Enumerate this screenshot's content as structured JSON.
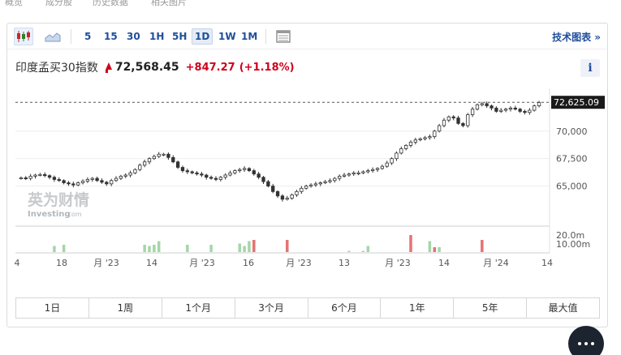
{
  "top_strip": [
    "概览",
    "成分股",
    "历史数据",
    "相关图片"
  ],
  "toolbar": {
    "intervals": [
      "5",
      "15",
      "30",
      "1H",
      "5H",
      "1D",
      "1W",
      "1M"
    ],
    "active_interval": "1D",
    "tech_chart_label": "技术图表 »",
    "icons": [
      "candlestick-icon",
      "area-chart-icon",
      "table-icon"
    ]
  },
  "quote": {
    "name": "印度孟买30指数",
    "price": "72,568.45",
    "change": "+847.27",
    "change_pct": "(+1.18%)",
    "up_color": "#d0021b"
  },
  "info_label": "i",
  "watermark": {
    "cn": "英为财情",
    "en": "Investing",
    "suffix": ".com"
  },
  "chart_data": {
    "type": "candlestick",
    "current_price_label": "72,625.09",
    "current_price": 72625,
    "y_ticks": [
      70000,
      67500,
      65000
    ],
    "y_tick_labels": [
      "70,000",
      "67,500",
      "65,000"
    ],
    "ylim": [
      61500,
      73600
    ],
    "volume_labels": [
      "20.0m",
      "10.00m"
    ],
    "x_tick_labels": [
      "4",
      "18",
      "月 '23",
      "14",
      "月 '23",
      "16",
      "月 '23",
      "13",
      "月 '23",
      "14",
      "月 '24",
      "14"
    ],
    "x_tick_positions": [
      20,
      75,
      130,
      186,
      248,
      305,
      367,
      423,
      489,
      546,
      610,
      673
    ],
    "closes": [
      65750,
      65700,
      65900,
      66000,
      66050,
      65950,
      65800,
      65600,
      65500,
      65300,
      65200,
      65100,
      65300,
      65450,
      65600,
      65700,
      65500,
      65350,
      65200,
      65500,
      65700,
      65900,
      66000,
      66200,
      66500,
      66900,
      67200,
      67500,
      67700,
      67900,
      67900,
      67600,
      67200,
      66700,
      66400,
      66300,
      66200,
      66100,
      66000,
      65800,
      65700,
      65600,
      65800,
      66000,
      66200,
      66400,
      66500,
      66600,
      66400,
      66100,
      65800,
      65400,
      65000,
      64500,
      64100,
      63800,
      63900,
      64200,
      64500,
      64800,
      65000,
      65100,
      65200,
      65300,
      65400,
      65500,
      65700,
      65900,
      66000,
      66100,
      66200,
      66200,
      66300,
      66400,
      66500,
      66600,
      66800,
      67100,
      67500,
      68000,
      68400,
      68700,
      69000,
      69200,
      69300,
      69400,
      69500,
      70000,
      70500,
      71000,
      71300,
      71200,
      70700,
      70500,
      71500,
      72000,
      72400,
      72500,
      72300,
      72100,
      71800,
      71900,
      72000,
      72100,
      72000,
      71800,
      71700,
      71900,
      72300,
      72600
    ],
    "volumes": [
      0,
      0,
      0,
      0,
      0,
      0,
      0,
      1,
      0,
      1,
      0,
      0,
      0,
      0,
      0,
      0,
      0,
      0,
      0,
      0,
      0,
      0,
      0,
      0,
      0,
      0,
      1,
      1,
      1,
      1,
      0,
      0,
      0,
      0,
      0,
      1,
      0,
      0,
      0,
      0,
      1,
      0,
      0,
      0,
      0,
      0,
      1,
      1,
      1,
      2,
      0,
      0,
      0,
      0,
      0,
      0,
      2,
      0,
      0,
      0,
      0,
      0,
      0,
      0,
      0,
      0,
      0,
      0,
      0,
      1,
      0,
      0,
      1,
      1,
      0,
      0,
      0,
      0,
      0,
      0,
      0,
      0,
      3,
      0,
      0,
      0,
      1,
      2,
      1,
      0,
      0,
      0,
      0,
      0,
      0,
      0,
      0,
      2,
      0,
      0,
      0,
      0,
      0,
      0,
      0,
      0,
      0,
      0,
      0,
      0
    ],
    "volume_values_m": [
      0,
      0,
      0,
      0,
      0,
      0,
      0,
      5,
      0,
      6,
      0,
      0,
      0,
      0,
      0,
      0,
      0,
      0,
      0,
      0,
      0,
      0,
      0,
      0,
      0,
      0,
      6,
      5,
      6,
      9,
      0,
      0,
      0,
      0,
      0,
      6,
      0,
      0,
      0,
      0,
      6,
      0,
      0,
      0,
      0,
      0,
      7,
      5,
      9,
      10,
      0,
      0,
      0,
      0,
      0,
      0,
      10,
      0,
      0,
      0,
      0,
      0,
      0,
      0,
      0,
      0,
      0,
      0,
      0,
      1,
      0,
      0,
      1,
      5,
      0,
      0,
      0,
      0,
      0,
      0,
      0,
      0,
      14,
      0,
      0,
      0,
      9,
      4,
      4,
      0,
      0,
      0,
      0,
      0,
      0,
      0,
      0,
      10,
      0,
      0,
      0,
      0,
      0,
      0,
      0,
      0,
      0,
      0,
      0,
      0
    ],
    "up_color": "#26a69a",
    "down_color": "#ef5350",
    "vol_up_color": "#a5d6a7",
    "vol_down_color": "#e57373",
    "grid": true
  },
  "range_tabs": [
    "1日",
    "1周",
    "1个月",
    "3个月",
    "6个月",
    "1年",
    "5年",
    "最大值"
  ]
}
